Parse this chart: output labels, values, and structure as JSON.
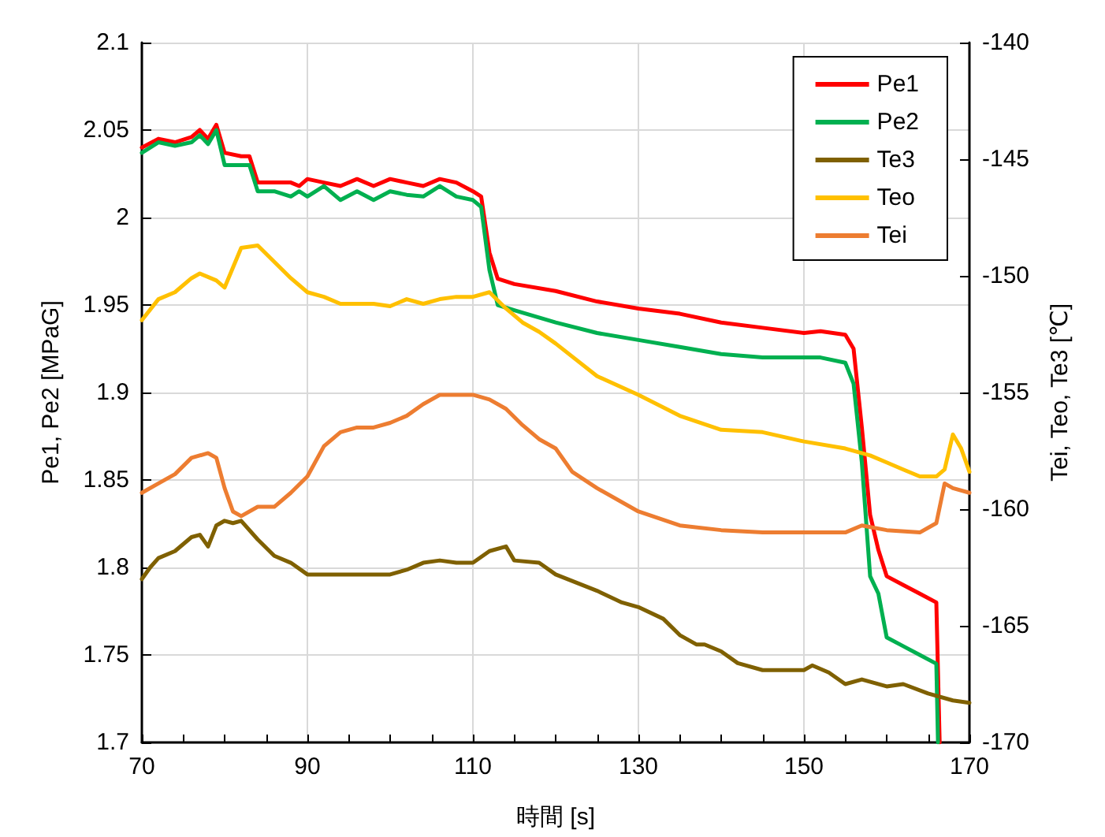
{
  "chart_data": {
    "type": "line",
    "xlabel": "時間 [s]",
    "ylabel": "Pe1, Pe2 [MPaG]",
    "y2label": "Tei, Teo, Te3 [℃]",
    "xlim": [
      70,
      170
    ],
    "xticks": [
      70,
      {
        "value": 75,
        "label": null
      },
      {
        "value": 80,
        "label": null
      },
      {
        "value": 85,
        "label": null
      },
      90,
      {
        "value": 95,
        "label": null
      },
      {
        "value": 100,
        "label": null
      },
      {
        "value": 105,
        "label": null
      },
      110,
      {
        "value": 115,
        "label": null
      },
      {
        "value": 120,
        "label": null
      },
      {
        "value": 125,
        "label": null
      },
      130,
      {
        "value": 135,
        "label": null
      },
      {
        "value": 140,
        "label": null
      },
      {
        "value": 145,
        "label": null
      },
      150,
      {
        "value": 155,
        "label": null
      },
      {
        "value": 160,
        "label": null
      },
      {
        "value": 165,
        "label": null
      },
      170
    ],
    "ylim": [
      1.7,
      2.1
    ],
    "yticks": [
      1.7,
      1.75,
      1.8,
      1.85,
      1.9,
      1.95,
      2,
      2.05,
      2.1
    ],
    "y2lim": [
      -170,
      -140
    ],
    "y2ticks": [
      -170,
      -165,
      -160,
      -155,
      -150,
      -145,
      -140
    ],
    "grid": true,
    "legend": "top right",
    "marker": "none",
    "line_style": "solid",
    "series": [
      {
        "name": "Pe1",
        "color": "#ff0000",
        "x": [
          70,
          72,
          74,
          76,
          77,
          78,
          79,
          80,
          82,
          83,
          84,
          86,
          88,
          89,
          90,
          92,
          94,
          96,
          98,
          100,
          102,
          104,
          106,
          108,
          110,
          111,
          112,
          113,
          115,
          120,
          125,
          130,
          135,
          140,
          145,
          150,
          152,
          155,
          156,
          157,
          158,
          159,
          160,
          162,
          164,
          166,
          166.4
        ],
        "values": [
          2.04,
          2.045,
          2.043,
          2.046,
          2.05,
          2.045,
          2.053,
          2.037,
          2.035,
          2.035,
          2.02,
          2.02,
          2.02,
          2.018,
          2.022,
          2.02,
          2.018,
          2.022,
          2.018,
          2.022,
          2.02,
          2.018,
          2.022,
          2.02,
          2.015,
          2.012,
          1.98,
          1.965,
          1.962,
          1.958,
          1.952,
          1.948,
          1.945,
          1.94,
          1.937,
          1.934,
          1.935,
          1.933,
          1.925,
          1.88,
          1.83,
          1.81,
          1.795,
          1.79,
          1.785,
          1.78,
          1.7
        ]
      },
      {
        "name": "Pe2",
        "color": "#00b050",
        "x": [
          70,
          72,
          74,
          76,
          77,
          78,
          79,
          80,
          82,
          83,
          84,
          86,
          88,
          89,
          90,
          92,
          94,
          96,
          98,
          100,
          102,
          104,
          106,
          108,
          110,
          111,
          112,
          113,
          115,
          120,
          125,
          130,
          135,
          140,
          145,
          150,
          152,
          155,
          156,
          157,
          158,
          159,
          160,
          162,
          164,
          166,
          166.2
        ],
        "values": [
          2.037,
          2.043,
          2.041,
          2.043,
          2.047,
          2.042,
          2.05,
          2.03,
          2.03,
          2.03,
          2.015,
          2.015,
          2.012,
          2.015,
          2.012,
          2.018,
          2.01,
          2.015,
          2.01,
          2.015,
          2.013,
          2.012,
          2.018,
          2.012,
          2.01,
          2.006,
          1.97,
          1.95,
          1.947,
          1.94,
          1.934,
          1.93,
          1.926,
          1.922,
          1.92,
          1.92,
          1.92,
          1.917,
          1.905,
          1.86,
          1.795,
          1.785,
          1.76,
          1.755,
          1.75,
          1.745,
          1.7
        ]
      },
      {
        "name": "Te3",
        "color": "#7f6000",
        "axis": "y2",
        "x": [
          70,
          71,
          72,
          74,
          76,
          77,
          78,
          79,
          80,
          81,
          82,
          84,
          86,
          88,
          90,
          92,
          95,
          100,
          102,
          104,
          106,
          108,
          110,
          112,
          114,
          115,
          118,
          120,
          125,
          128,
          130,
          133,
          135,
          137,
          138,
          140,
          142,
          145,
          148,
          150,
          151,
          153,
          155,
          157,
          160,
          162,
          165,
          168,
          170
        ],
        "values": [
          -163,
          -162.5,
          -162.1,
          -161.8,
          -161.2,
          -161.1,
          -161.6,
          -160.7,
          -160.5,
          -160.6,
          -160.5,
          -161.3,
          -162,
          -162.3,
          -162.8,
          -162.8,
          -162.8,
          -162.8,
          -162.6,
          -162.3,
          -162.2,
          -162.3,
          -162.3,
          -161.8,
          -161.6,
          -162.2,
          -162.3,
          -162.8,
          -163.5,
          -164,
          -164.2,
          -164.7,
          -165.4,
          -165.8,
          -165.8,
          -166.1,
          -166.6,
          -166.9,
          -166.9,
          -166.9,
          -166.7,
          -167,
          -167.5,
          -167.3,
          -167.6,
          -167.5,
          -167.9,
          -168.2,
          -168.3
        ]
      },
      {
        "name": "Teo",
        "color": "#ffc000",
        "axis": "y2",
        "x": [
          70,
          72,
          74,
          76,
          77,
          79,
          80,
          82,
          84,
          86,
          88,
          90,
          92,
          94,
          96,
          98,
          100,
          102,
          104,
          106,
          108,
          110,
          112,
          114,
          116,
          118,
          120,
          125,
          130,
          135,
          140,
          145,
          150,
          155,
          158,
          160,
          162,
          164,
          166,
          167,
          168,
          169,
          170
        ],
        "values": [
          -151.9,
          -151,
          -150.7,
          -150.1,
          -149.9,
          -150.2,
          -150.5,
          -148.8,
          -148.7,
          -149.4,
          -150.1,
          -150.7,
          -150.9,
          -151.2,
          -151.2,
          -151.2,
          -151.3,
          -151,
          -151.2,
          -151,
          -150.9,
          -150.9,
          -150.7,
          -151.4,
          -152,
          -152.4,
          -152.9,
          -154.3,
          -155.1,
          -156,
          -156.6,
          -156.7,
          -157.1,
          -157.4,
          -157.7,
          -158,
          -158.3,
          -158.6,
          -158.6,
          -158.3,
          -156.8,
          -157.4,
          -158.4
        ]
      },
      {
        "name": "Tei",
        "color": "#ed7d31",
        "axis": "y2",
        "x": [
          70,
          72,
          74,
          76,
          78,
          79,
          80,
          81,
          82,
          84,
          86,
          88,
          90,
          92,
          94,
          96,
          98,
          100,
          102,
          104,
          106,
          108,
          110,
          112,
          114,
          116,
          118,
          120,
          122,
          125,
          130,
          135,
          140,
          145,
          150,
          155,
          157,
          160,
          164,
          166,
          167,
          168,
          170
        ],
        "values": [
          -159.3,
          -158.9,
          -158.5,
          -157.8,
          -157.6,
          -157.8,
          -159.1,
          -160.1,
          -160.3,
          -159.9,
          -159.9,
          -159.3,
          -158.6,
          -157.3,
          -156.7,
          -156.5,
          -156.5,
          -156.3,
          -156,
          -155.5,
          -155.1,
          -155.1,
          -155.1,
          -155.3,
          -155.7,
          -156.4,
          -157,
          -157.4,
          -158.4,
          -159.1,
          -160.1,
          -160.7,
          -160.9,
          -161,
          -161,
          -161,
          -160.7,
          -160.9,
          -161,
          -160.6,
          -158.9,
          -159.1,
          -159.3
        ]
      }
    ]
  }
}
